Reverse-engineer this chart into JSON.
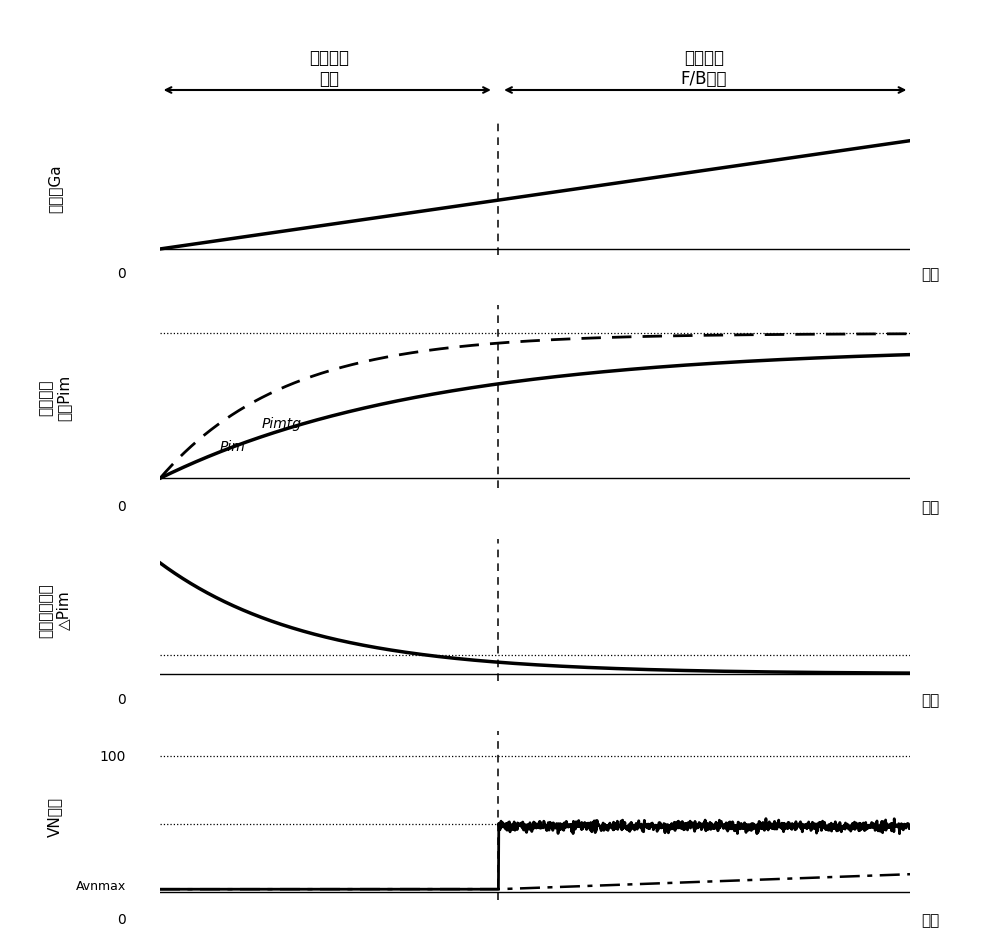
{
  "fig_width": 10.0,
  "fig_height": 9.29,
  "dpi": 100,
  "t_max": 10.0,
  "t_div": 4.5,
  "background_color": "#ffffff",
  "label_max_boost": "最大增压\n模式",
  "label_intake_fb": "进气压力\nF/B模式",
  "time_label": "时间",
  "panel1_ylabel": "进气量Ga",
  "panel2_ylabel": "进气歧管\n压力Pim",
  "panel2_pim": "Pim",
  "panel2_pimtg": "Pimtg",
  "panel3_ylabel": "增压压力偏差\n△Pim",
  "panel4_ylabel": "VN开度",
  "panel4_100": "100",
  "panel4_avnmax": "Avnmax",
  "panel4_0": "0"
}
